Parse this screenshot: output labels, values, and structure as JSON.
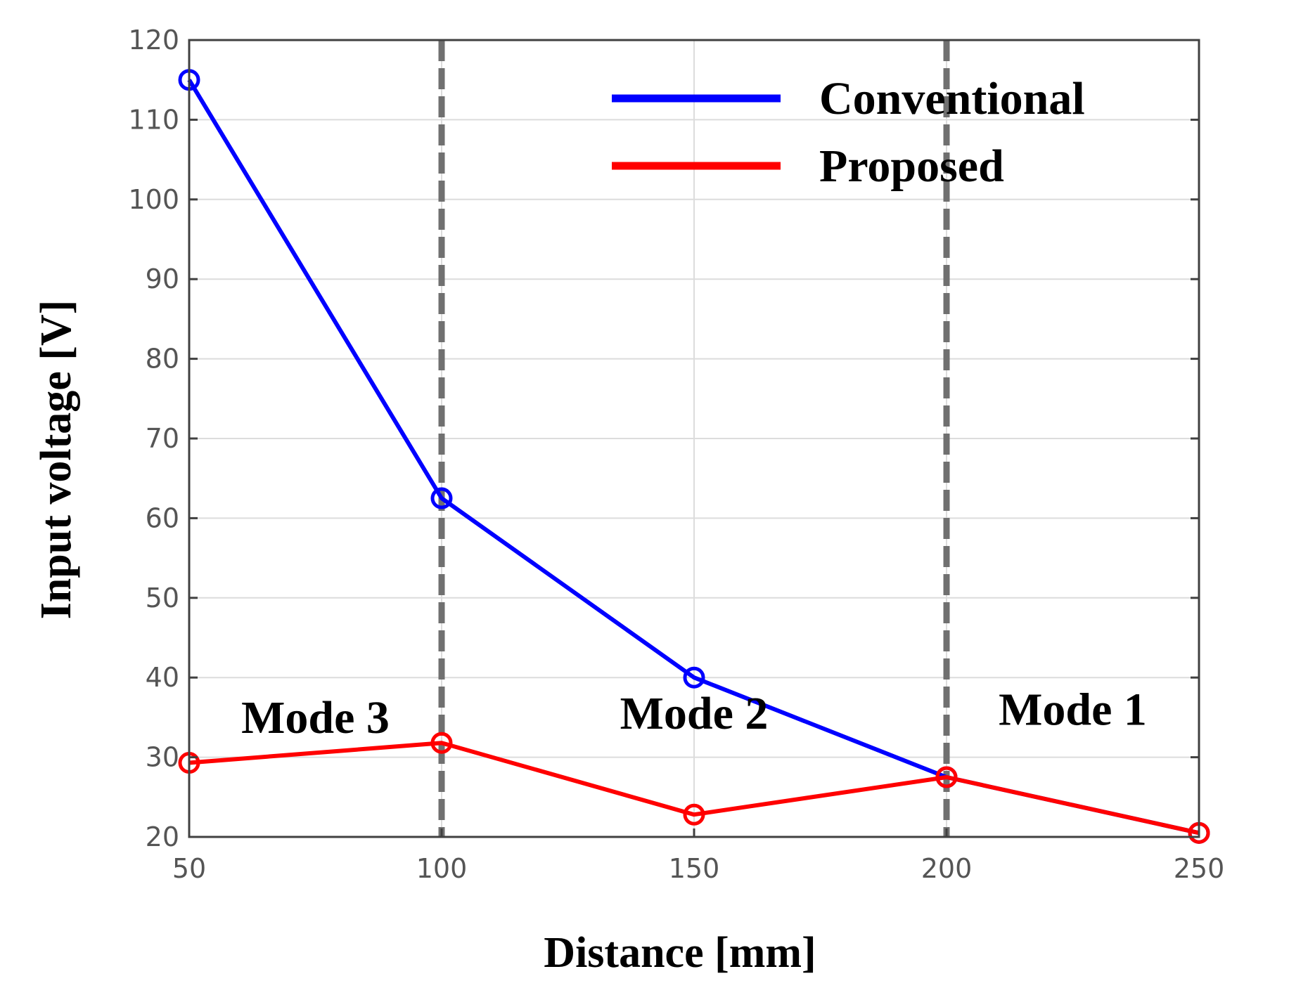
{
  "chart_data": {
    "type": "line",
    "title": "",
    "xlabel": "Distance [mm]",
    "ylabel": "Input voltage [V]",
    "x": [
      50,
      100,
      150,
      200,
      250
    ],
    "xlim": [
      50,
      250
    ],
    "ylim": [
      20,
      120
    ],
    "xticks": [
      50,
      100,
      150,
      200,
      250
    ],
    "yticks": [
      20,
      30,
      40,
      50,
      60,
      70,
      80,
      90,
      100,
      110,
      120
    ],
    "grid": true,
    "legend_position": "top-right",
    "series": [
      {
        "name": "Conventional",
        "color": "#0000ff",
        "values": [
          115,
          62.5,
          40,
          27.5,
          20.5
        ]
      },
      {
        "name": "Proposed",
        "color": "#ff0000",
        "values": [
          29.3,
          31.8,
          22.8,
          27.5,
          20.5
        ]
      }
    ],
    "mode_boundaries": [
      100,
      200
    ],
    "boundary_color": "#707070",
    "annotations": [
      {
        "text": "Mode 3",
        "x": 75,
        "y": 35
      },
      {
        "text": "Mode 2",
        "x": 150,
        "y": 35.5
      },
      {
        "text": "Mode 1",
        "x": 225,
        "y": 36
      }
    ]
  }
}
